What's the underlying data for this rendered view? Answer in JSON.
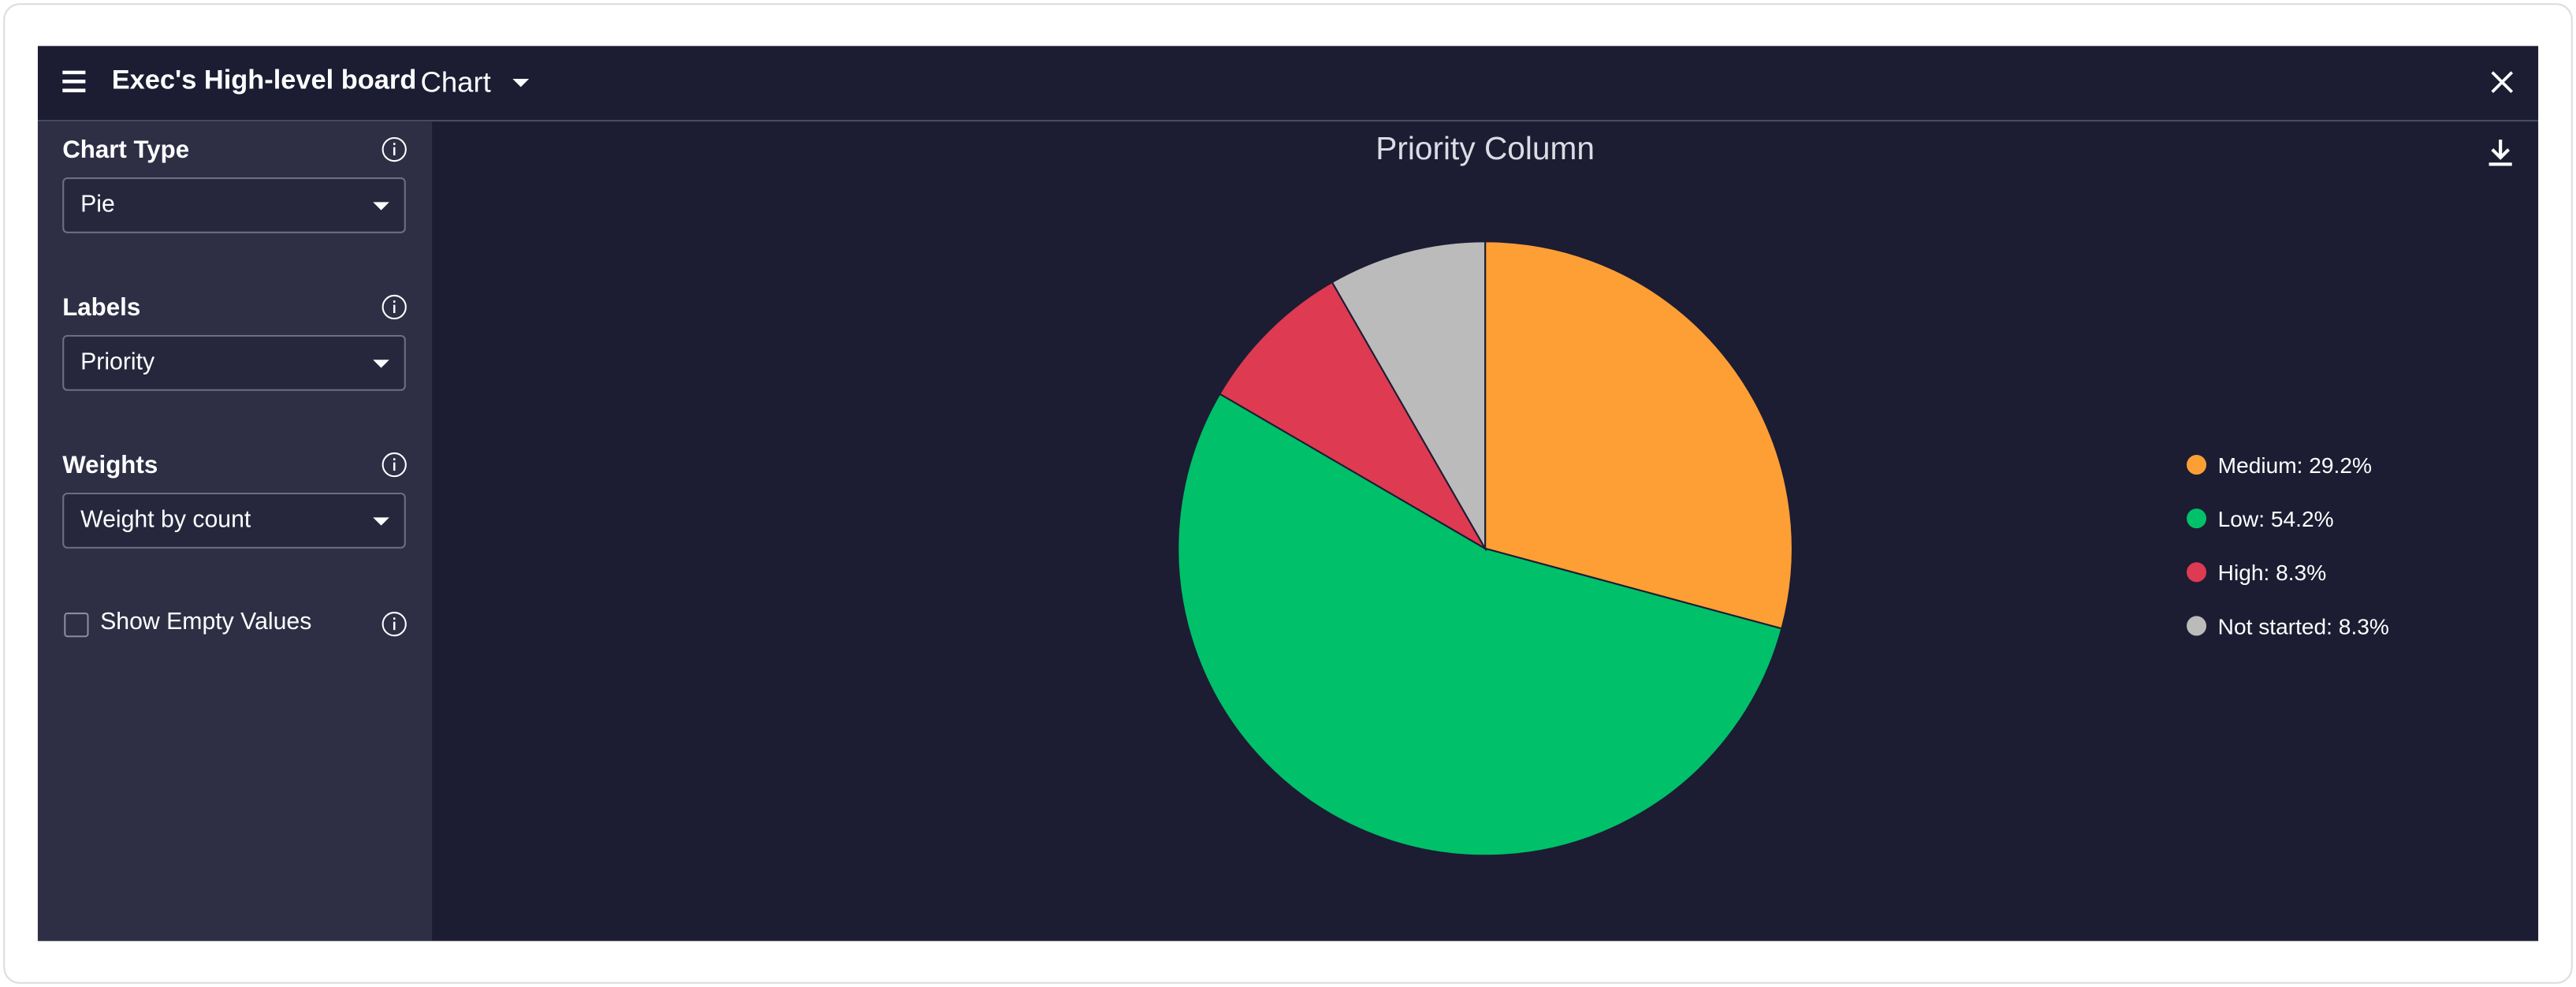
{
  "header": {
    "title": "Exec's High-level board",
    "view": "Chart"
  },
  "sidebar": {
    "fields": [
      {
        "label": "Chart Type",
        "value": "Pie"
      },
      {
        "label": "Labels",
        "value": "Priority"
      },
      {
        "label": "Weights",
        "value": "Weight by count"
      }
    ],
    "checkbox": {
      "label": "Show Empty Values",
      "checked": false
    }
  },
  "chart_data": {
    "type": "pie",
    "title": "Priority Column",
    "categories": [
      "Medium: 29.2%",
      "Low: 54.2%",
      "High: 8.3%",
      "Not started: 8.3%"
    ],
    "values": [
      29.2,
      54.2,
      8.3,
      8.3
    ],
    "colors": [
      "#fd9f35",
      "#00c06a",
      "#de3a52",
      "#bbbbbb"
    ],
    "legend": "right"
  }
}
